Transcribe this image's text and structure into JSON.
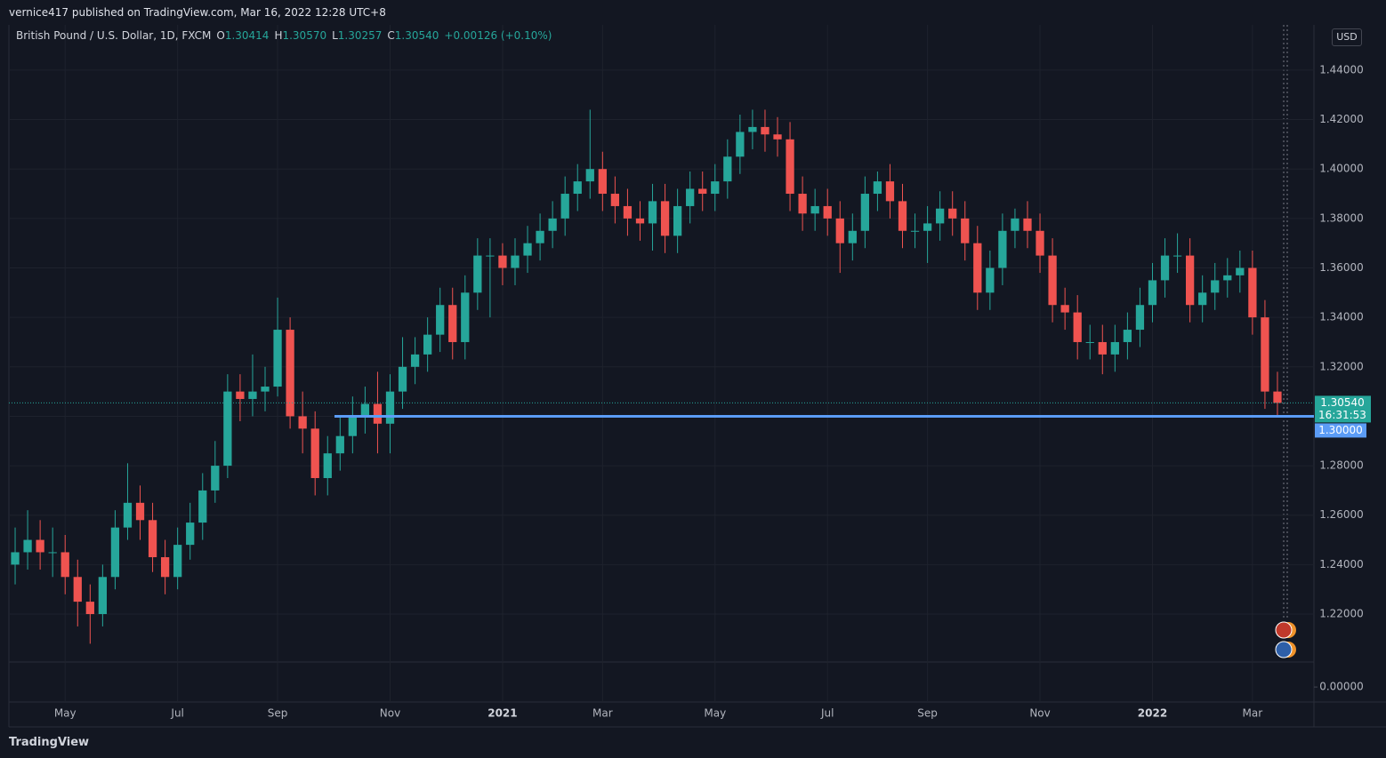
{
  "header": "vernice417 published on TradingView.com, Mar 16, 2022 12:28 UTC+8",
  "footer": "TradingView",
  "chart_data": {
    "type": "candlestick",
    "title": "British Pound / U.S. Dollar, 1D, FXCM",
    "currency": "USD",
    "ohlc_header": [
      {
        "name": "O",
        "value": 1.30414
      },
      {
        "name": "H",
        "value": 1.3057,
        "label": "1.30570"
      },
      {
        "name": "L",
        "value": 1.30257
      },
      {
        "name": "C",
        "value": 1.3054,
        "label": "1.30540"
      }
    ],
    "change": "+0.00126 (+0.10%)",
    "up_color": "#26a69a",
    "down_color": "#ef5350",
    "categories": [
      null,
      null,
      null,
      null,
      "May",
      null,
      null,
      null,
      null,
      null,
      null,
      null,
      null,
      "Jul",
      null,
      null,
      null,
      null,
      null,
      null,
      null,
      "Sep",
      null,
      null,
      null,
      null,
      null,
      null,
      null,
      null,
      "Nov",
      null,
      null,
      null,
      null,
      null,
      null,
      null,
      null,
      "2021",
      null,
      null,
      null,
      null,
      null,
      null,
      null,
      "Mar",
      null,
      null,
      null,
      null,
      null,
      null,
      null,
      null,
      "May",
      null,
      null,
      null,
      null,
      null,
      null,
      null,
      null,
      "Jul",
      null,
      null,
      null,
      null,
      null,
      null,
      null,
      "Sep",
      null,
      null,
      null,
      null,
      null,
      null,
      null,
      null,
      "Nov",
      null,
      null,
      null,
      null,
      null,
      null,
      null,
      null,
      "2022",
      null,
      null,
      null,
      null,
      null,
      null,
      null,
      "Mar",
      null,
      null
    ],
    "ohlc": [
      [
        1.24,
        1.255,
        1.232,
        1.245
      ],
      [
        1.245,
        1.262,
        1.238,
        1.25
      ],
      [
        1.25,
        1.258,
        1.238,
        1.245
      ],
      [
        1.245,
        1.255,
        1.235,
        1.245
      ],
      [
        1.245,
        1.252,
        1.228,
        1.235
      ],
      [
        1.235,
        1.242,
        1.215,
        1.225
      ],
      [
        1.225,
        1.232,
        1.208,
        1.22
      ],
      [
        1.22,
        1.24,
        1.215,
        1.235
      ],
      [
        1.235,
        1.262,
        1.23,
        1.255
      ],
      [
        1.255,
        1.281,
        1.25,
        1.265
      ],
      [
        1.265,
        1.272,
        1.25,
        1.258
      ],
      [
        1.258,
        1.265,
        1.237,
        1.243
      ],
      [
        1.243,
        1.25,
        1.228,
        1.235
      ],
      [
        1.235,
        1.255,
        1.23,
        1.248
      ],
      [
        1.248,
        1.265,
        1.242,
        1.257
      ],
      [
        1.257,
        1.277,
        1.25,
        1.27
      ],
      [
        1.27,
        1.29,
        1.265,
        1.28
      ],
      [
        1.28,
        1.317,
        1.275,
        1.31
      ],
      [
        1.31,
        1.317,
        1.298,
        1.307
      ],
      [
        1.307,
        1.325,
        1.3,
        1.31
      ],
      [
        1.31,
        1.32,
        1.302,
        1.312
      ],
      [
        1.312,
        1.348,
        1.308,
        1.335
      ],
      [
        1.335,
        1.34,
        1.295,
        1.3
      ],
      [
        1.3,
        1.31,
        1.285,
        1.295
      ],
      [
        1.295,
        1.302,
        1.268,
        1.275
      ],
      [
        1.275,
        1.292,
        1.268,
        1.285
      ],
      [
        1.285,
        1.3,
        1.278,
        1.292
      ],
      [
        1.292,
        1.308,
        1.285,
        1.3
      ],
      [
        1.3,
        1.312,
        1.293,
        1.305
      ],
      [
        1.305,
        1.318,
        1.285,
        1.297
      ],
      [
        1.297,
        1.317,
        1.285,
        1.31
      ],
      [
        1.31,
        1.332,
        1.303,
        1.32
      ],
      [
        1.32,
        1.332,
        1.313,
        1.325
      ],
      [
        1.325,
        1.34,
        1.318,
        1.333
      ],
      [
        1.333,
        1.352,
        1.326,
        1.345
      ],
      [
        1.345,
        1.352,
        1.323,
        1.33
      ],
      [
        1.33,
        1.357,
        1.323,
        1.35
      ],
      [
        1.35,
        1.372,
        1.343,
        1.365
      ],
      [
        1.365,
        1.372,
        1.34,
        1.365
      ],
      [
        1.365,
        1.37,
        1.353,
        1.36
      ],
      [
        1.36,
        1.372,
        1.353,
        1.365
      ],
      [
        1.365,
        1.377,
        1.358,
        1.37
      ],
      [
        1.37,
        1.382,
        1.363,
        1.375
      ],
      [
        1.375,
        1.387,
        1.368,
        1.38
      ],
      [
        1.38,
        1.397,
        1.373,
        1.39
      ],
      [
        1.39,
        1.402,
        1.383,
        1.395
      ],
      [
        1.395,
        1.424,
        1.388,
        1.4
      ],
      [
        1.4,
        1.407,
        1.383,
        1.39
      ],
      [
        1.39,
        1.397,
        1.378,
        1.385
      ],
      [
        1.385,
        1.392,
        1.373,
        1.38
      ],
      [
        1.38,
        1.387,
        1.371,
        1.378
      ],
      [
        1.378,
        1.394,
        1.367,
        1.387
      ],
      [
        1.387,
        1.394,
        1.366,
        1.373
      ],
      [
        1.373,
        1.392,
        1.366,
        1.385
      ],
      [
        1.385,
        1.399,
        1.378,
        1.392
      ],
      [
        1.392,
        1.399,
        1.383,
        1.39
      ],
      [
        1.39,
        1.402,
        1.383,
        1.395
      ],
      [
        1.395,
        1.412,
        1.388,
        1.405
      ],
      [
        1.405,
        1.422,
        1.398,
        1.415
      ],
      [
        1.415,
        1.424,
        1.408,
        1.417
      ],
      [
        1.417,
        1.424,
        1.407,
        1.414
      ],
      [
        1.414,
        1.421,
        1.405,
        1.412
      ],
      [
        1.412,
        1.419,
        1.383,
        1.39
      ],
      [
        1.39,
        1.397,
        1.375,
        1.382
      ],
      [
        1.382,
        1.392,
        1.375,
        1.385
      ],
      [
        1.385,
        1.392,
        1.373,
        1.38
      ],
      [
        1.38,
        1.387,
        1.358,
        1.37
      ],
      [
        1.37,
        1.382,
        1.363,
        1.375
      ],
      [
        1.375,
        1.397,
        1.368,
        1.39
      ],
      [
        1.39,
        1.399,
        1.383,
        1.395
      ],
      [
        1.395,
        1.402,
        1.38,
        1.387
      ],
      [
        1.387,
        1.394,
        1.368,
        1.375
      ],
      [
        1.375,
        1.382,
        1.368,
        1.375
      ],
      [
        1.375,
        1.385,
        1.362,
        1.378
      ],
      [
        1.378,
        1.391,
        1.371,
        1.384
      ],
      [
        1.384,
        1.391,
        1.373,
        1.38
      ],
      [
        1.38,
        1.387,
        1.363,
        1.37
      ],
      [
        1.37,
        1.377,
        1.343,
        1.35
      ],
      [
        1.35,
        1.367,
        1.343,
        1.36
      ],
      [
        1.36,
        1.382,
        1.353,
        1.375
      ],
      [
        1.375,
        1.384,
        1.368,
        1.38
      ],
      [
        1.38,
        1.387,
        1.368,
        1.375
      ],
      [
        1.375,
        1.382,
        1.358,
        1.365
      ],
      [
        1.365,
        1.372,
        1.338,
        1.345
      ],
      [
        1.345,
        1.352,
        1.335,
        1.342
      ],
      [
        1.342,
        1.349,
        1.323,
        1.33
      ],
      [
        1.33,
        1.337,
        1.323,
        1.33
      ],
      [
        1.33,
        1.337,
        1.317,
        1.325
      ],
      [
        1.325,
        1.337,
        1.318,
        1.33
      ],
      [
        1.33,
        1.342,
        1.323,
        1.335
      ],
      [
        1.335,
        1.352,
        1.328,
        1.345
      ],
      [
        1.345,
        1.362,
        1.338,
        1.355
      ],
      [
        1.355,
        1.372,
        1.348,
        1.365
      ],
      [
        1.365,
        1.374,
        1.358,
        1.365
      ],
      [
        1.365,
        1.372,
        1.338,
        1.345
      ],
      [
        1.345,
        1.357,
        1.338,
        1.35
      ],
      [
        1.35,
        1.362,
        1.343,
        1.355
      ],
      [
        1.355,
        1.364,
        1.348,
        1.357
      ],
      [
        1.357,
        1.367,
        1.35,
        1.36
      ],
      [
        1.36,
        1.367,
        1.333,
        1.34
      ],
      [
        1.34,
        1.347,
        1.303,
        1.31
      ],
      [
        1.31,
        1.318,
        1.3,
        1.3054
      ]
    ],
    "ylim": [
      1.2006,
      1.4583
    ],
    "yticks": [
      {
        "value": 1.22,
        "label": "1.22000"
      },
      {
        "value": 1.24,
        "label": "1.24000"
      },
      {
        "value": 1.26,
        "label": "1.26000"
      },
      {
        "value": 1.28,
        "label": "1.28000"
      },
      {
        "value": 1.3,
        "label": "1.30000"
      },
      {
        "value": 1.32,
        "label": "1.32000"
      },
      {
        "value": 1.34,
        "label": "1.34000"
      },
      {
        "value": 1.36,
        "label": "1.36000"
      },
      {
        "value": 1.38,
        "label": "1.38000"
      },
      {
        "value": 1.4,
        "label": "1.40000"
      },
      {
        "value": 1.42,
        "label": "1.42000"
      },
      {
        "value": 1.44,
        "label": "1.44000"
      }
    ],
    "y2lim": [
      -0.6,
      1
    ],
    "y2ticks": [
      {
        "value": 0,
        "label": "0.00000"
      }
    ],
    "grid": true,
    "last_price": {
      "value": 1.3054,
      "label": "1.30540",
      "countdown": "16:31:53"
    },
    "hline": {
      "value": 1.3,
      "label": "1.30000",
      "color": "#5b9cf6"
    }
  }
}
